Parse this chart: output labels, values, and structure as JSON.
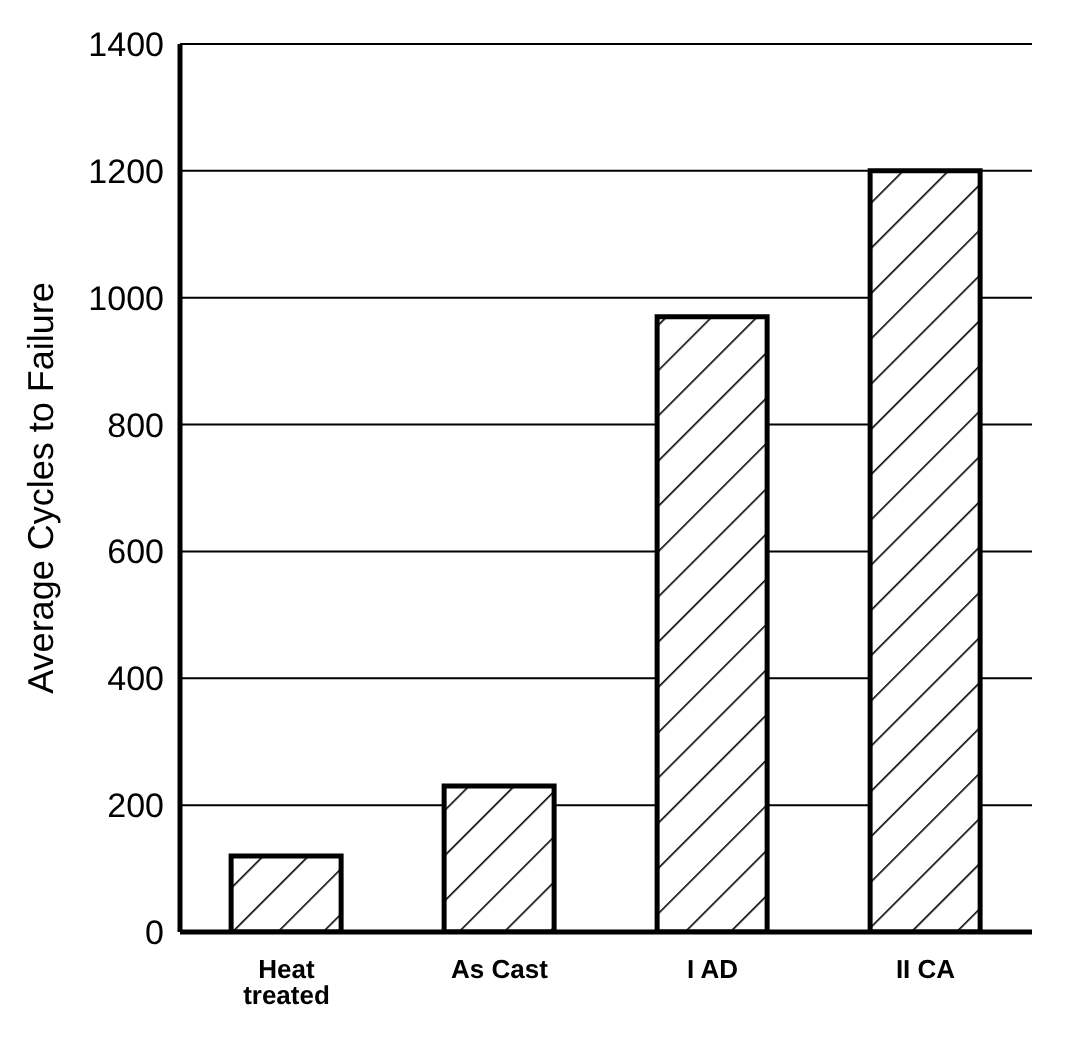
{
  "chart_data": {
    "type": "bar",
    "ylabel": "Average Cycles to Failure",
    "categories": [
      "Heat treated",
      "As Cast",
      "I AD",
      "II CA"
    ],
    "values": [
      120,
      230,
      970,
      1200
    ],
    "color": "#000000",
    "ylim": [
      0,
      1400
    ],
    "yticks": [
      0,
      200,
      400,
      600,
      800,
      1000,
      1200,
      1400
    ],
    "grid": "y"
  }
}
